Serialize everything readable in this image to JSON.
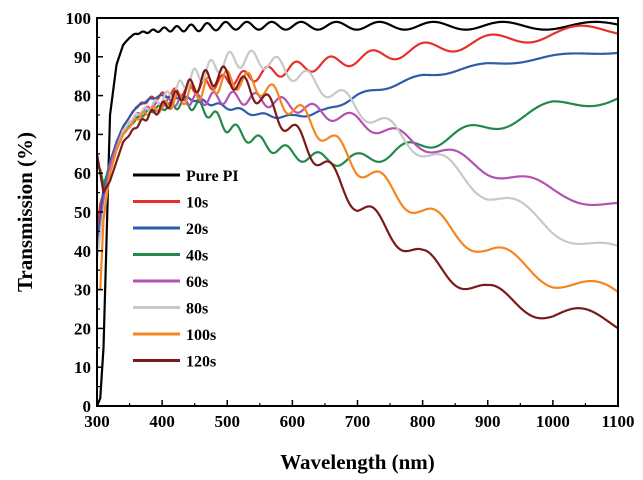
{
  "chart_data": {
    "type": "line",
    "title": "",
    "xlabel": "Wavelength (nm)",
    "ylabel": "Transmission (%)",
    "xlim": [
      300,
      1100
    ],
    "ylim": [
      0,
      100
    ],
    "xticks": [
      300,
      400,
      500,
      600,
      700,
      800,
      900,
      1000,
      1100
    ],
    "xtick_labels": [
      "300",
      "400",
      "500",
      "600",
      "700",
      "800",
      "900",
      "1000",
      "1100"
    ],
    "yticks": [
      0,
      10,
      20,
      30,
      40,
      50,
      60,
      70,
      80,
      90,
      100
    ],
    "ytick_labels": [
      "0",
      "10",
      "20",
      "30",
      "40",
      "50",
      "60",
      "70",
      "80",
      "90",
      "100"
    ],
    "grid": false,
    "legend_position": "left",
    "series": [
      {
        "name": "Pure PI",
        "color": "#000000",
        "ripple": 1.0,
        "x": [
          300,
          305,
          310,
          315,
          320,
          330,
          340,
          350,
          360,
          380,
          400,
          450,
          500,
          600,
          700,
          800,
          900,
          1000,
          1100
        ],
        "y": [
          0,
          2,
          15,
          45,
          75,
          88,
          93,
          95,
          96,
          96.5,
          97,
          97.5,
          98,
          98,
          98,
          98,
          98,
          98,
          98
        ]
      },
      {
        "name": "10s",
        "color": "#e8302a",
        "ripple": 1.6,
        "x": [
          300,
          305,
          310,
          320,
          330,
          340,
          360,
          380,
          400,
          450,
          500,
          550,
          600,
          700,
          800,
          900,
          1000,
          1100
        ],
        "y": [
          45,
          52,
          55,
          62,
          68,
          72,
          77,
          79,
          80,
          82,
          84,
          85.5,
          87,
          89.5,
          92,
          94,
          96,
          97
        ]
      },
      {
        "name": "20s",
        "color": "#2e5caa",
        "ripple": 0.5,
        "x": [
          300,
          305,
          310,
          320,
          330,
          340,
          360,
          380,
          400,
          450,
          500,
          550,
          600,
          650,
          700,
          800,
          900,
          1000,
          1100
        ],
        "y": [
          42,
          48,
          56,
          63,
          68,
          72,
          77,
          79,
          80,
          79,
          77,
          75,
          74.5,
          76,
          80,
          85,
          88,
          90,
          91.5
        ]
      },
      {
        "name": "40s",
        "color": "#21894a",
        "ripple": 1.6,
        "x": [
          300,
          305,
          310,
          320,
          330,
          340,
          360,
          380,
          400,
          440,
          470,
          500,
          550,
          600,
          650,
          700,
          750,
          800,
          900,
          1000,
          1100
        ],
        "y": [
          62,
          61,
          57,
          62,
          66,
          70,
          74,
          76,
          77,
          78,
          76,
          72,
          68,
          65,
          63.5,
          63.5,
          65,
          67.5,
          72,
          77,
          80
        ]
      },
      {
        "name": "60s",
        "color": "#b352b3",
        "ripple": 1.6,
        "x": [
          300,
          305,
          310,
          320,
          330,
          340,
          360,
          380,
          400,
          450,
          500,
          550,
          600,
          700,
          800,
          900,
          1000,
          1100
        ],
        "y": [
          40,
          45,
          52,
          62,
          67,
          71,
          75,
          77,
          78,
          79,
          79.5,
          79,
          77.5,
          73.5,
          67.5,
          61,
          55.5,
          51.5
        ]
      },
      {
        "name": "80s",
        "color": "#c8c8c8",
        "ripple": 2.2,
        "x": [
          300,
          305,
          310,
          320,
          330,
          340,
          360,
          380,
          400,
          450,
          500,
          530,
          560,
          600,
          650,
          700,
          800,
          900,
          1000,
          1100
        ],
        "y": [
          38,
          44,
          50,
          60,
          66,
          71,
          75,
          77,
          79,
          85,
          89,
          89.5,
          89,
          86,
          82,
          77,
          66,
          55,
          46,
          39
        ]
      },
      {
        "name": "100s",
        "color": "#f5861f",
        "ripple": 2.5,
        "x": [
          300,
          305,
          310,
          320,
          330,
          340,
          360,
          380,
          400,
          450,
          500,
          520,
          550,
          600,
          650,
          700,
          800,
          900,
          1000,
          1100
        ],
        "y": [
          30,
          30,
          48,
          60,
          66,
          70,
          74,
          76,
          77,
          81,
          84,
          84,
          82.5,
          77,
          70,
          62,
          50,
          40,
          33,
          28
        ]
      },
      {
        "name": "120s",
        "color": "#7a1a1a",
        "ripple": 2.5,
        "x": [
          300,
          305,
          310,
          320,
          330,
          340,
          360,
          380,
          400,
          450,
          480,
          500,
          550,
          600,
          650,
          700,
          800,
          900,
          1000,
          1100
        ],
        "y": [
          65,
          60,
          55,
          58,
          63,
          68,
          72,
          75,
          77,
          83,
          85,
          85,
          80,
          71,
          62,
          52,
          38,
          29,
          24,
          21
        ]
      }
    ]
  }
}
